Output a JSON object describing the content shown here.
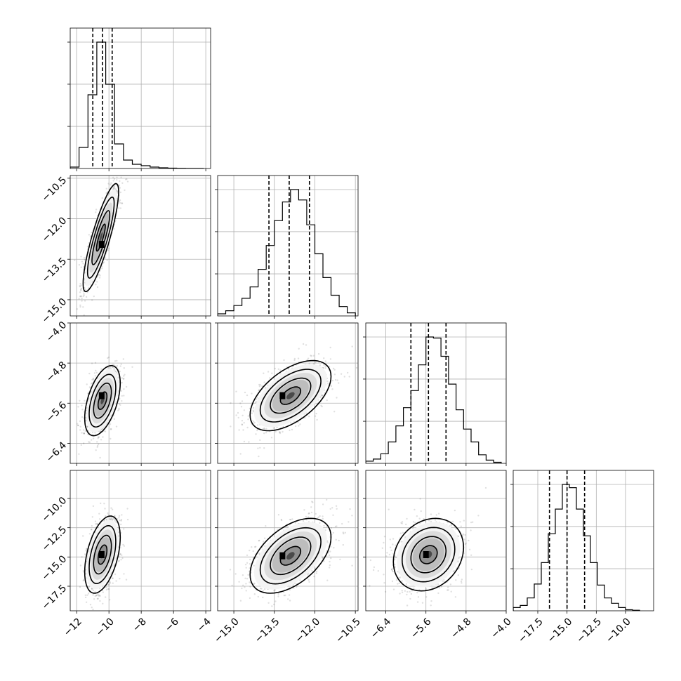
{
  "chart_data": {
    "type": "corner",
    "n_params": 4,
    "grid": true,
    "axes": [
      {
        "index": 0,
        "label": "",
        "range": [
          -12.4,
          -3.7
        ],
        "ticks": [
          -12,
          -10,
          -8,
          -6,
          -4
        ],
        "tick_labels": [
          "−12",
          "−10",
          "−8",
          "−6",
          "−4"
        ]
      },
      {
        "index": 1,
        "label": "",
        "range": [
          -15.6,
          -10.4
        ],
        "ticks": [
          -15.0,
          -13.5,
          -12.0,
          -10.5
        ],
        "tick_labels": [
          "−15.0",
          "−13.5",
          "−12.0",
          "−10.5"
        ]
      },
      {
        "index": 2,
        "label": "",
        "range": [
          -6.8,
          -4.0
        ],
        "ticks": [
          -6.4,
          -5.6,
          -4.8,
          -4.0
        ],
        "tick_labels": [
          "−6.4",
          "−5.6",
          "−4.8",
          "−4.0"
        ]
      },
      {
        "index": 3,
        "label": "",
        "range": [
          -19.6,
          -7.6
        ],
        "ticks": [
          -17.5,
          -15.0,
          -12.5,
          -10.0
        ],
        "tick_labels": [
          "−17.5",
          "−15.0",
          "−12.5",
          "−10.0"
        ]
      }
    ],
    "marginals": [
      {
        "param": 0,
        "quantiles": [
          -11.0,
          -10.4,
          -9.8
        ],
        "bins": [
          -12.4,
          -11.85,
          -11.3,
          -10.75,
          -10.2,
          -9.65,
          -9.1,
          -8.55,
          -8.0,
          -7.45,
          -6.9,
          -6.35,
          -5.8,
          -5.25,
          -4.7,
          -4.15
        ],
        "counts": [
          2,
          30,
          105,
          180,
          120,
          35,
          12,
          6,
          4,
          2,
          1,
          0.5,
          0.3,
          0.2,
          0.1
        ]
      },
      {
        "param": 1,
        "quantiles": [
          -13.7,
          -12.95,
          -12.2
        ],
        "bins": [
          -15.6,
          -15.3,
          -15.0,
          -14.7,
          -14.4,
          -14.1,
          -13.8,
          -13.5,
          -13.2,
          -12.9,
          -12.6,
          -12.3,
          -12.0,
          -11.7,
          -11.4,
          -11.1,
          -10.8,
          -10.5
        ],
        "counts": [
          2,
          5,
          10,
          17,
          28,
          45,
          68,
          92,
          110,
          122,
          112,
          88,
          60,
          37,
          20,
          9,
          3
        ]
      },
      {
        "param": 2,
        "quantiles": [
          -5.9,
          -5.55,
          -5.2
        ],
        "bins": [
          -6.8,
          -6.65,
          -6.5,
          -6.35,
          -6.2,
          -6.05,
          -5.9,
          -5.75,
          -5.6,
          -5.45,
          -5.3,
          -5.15,
          -5.0,
          -4.85,
          -4.7,
          -4.55,
          -4.4,
          -4.25,
          -4.1
        ],
        "counts": [
          2,
          4,
          9,
          20,
          35,
          52,
          68,
          92,
          118,
          117,
          100,
          74,
          50,
          32,
          20,
          8,
          3,
          1
        ]
      },
      {
        "param": 3,
        "quantiles": [
          -16.5,
          -15.0,
          -13.5
        ],
        "bins": [
          -19.6,
          -19.0,
          -18.4,
          -17.8,
          -17.2,
          -16.6,
          -16.0,
          -15.4,
          -14.8,
          -14.2,
          -13.6,
          -13.0,
          -12.4,
          -11.8,
          -11.2,
          -10.6,
          -10.0,
          -9.4,
          -8.8
        ],
        "counts": [
          3,
          5,
          12,
          25,
          45,
          72,
          95,
          118,
          115,
          95,
          70,
          45,
          24,
          12,
          7,
          3,
          1,
          0.5
        ]
      }
    ],
    "pairs": [
      {
        "x": 0,
        "y": 1,
        "mean": [
          -10.5,
          -12.7
        ],
        "sd": [
          0.55,
          1.0
        ],
        "rho": 0.85,
        "mode": [
          -10.45,
          -12.95
        ]
      },
      {
        "x": 0,
        "y": 2,
        "mean": [
          -10.4,
          -5.55
        ],
        "sd": [
          0.55,
          0.35
        ],
        "rho": 0.5,
        "mode": [
          -10.45,
          -5.45
        ]
      },
      {
        "x": 1,
        "y": 2,
        "mean": [
          -12.9,
          -5.45
        ],
        "sd": [
          0.75,
          0.35
        ],
        "rho": 0.55,
        "mode": [
          -13.2,
          -5.45
        ]
      },
      {
        "x": 0,
        "y": 3,
        "mean": [
          -10.4,
          -14.8
        ],
        "sd": [
          0.55,
          1.65
        ],
        "rho": 0.45,
        "mode": [
          -10.45,
          -14.8
        ]
      },
      {
        "x": 1,
        "y": 3,
        "mean": [
          -12.9,
          -14.9
        ],
        "sd": [
          0.75,
          1.6
        ],
        "rho": 0.5,
        "mode": [
          -13.2,
          -14.9
        ]
      },
      {
        "x": 2,
        "y": 3,
        "mean": [
          -5.55,
          -14.8
        ],
        "sd": [
          0.35,
          1.55
        ],
        "rho": 0.2,
        "mode": [
          -5.6,
          -14.8
        ]
      }
    ],
    "contour_levels_sigma": [
      0.5,
      1.0,
      1.5,
      2.0
    ]
  }
}
